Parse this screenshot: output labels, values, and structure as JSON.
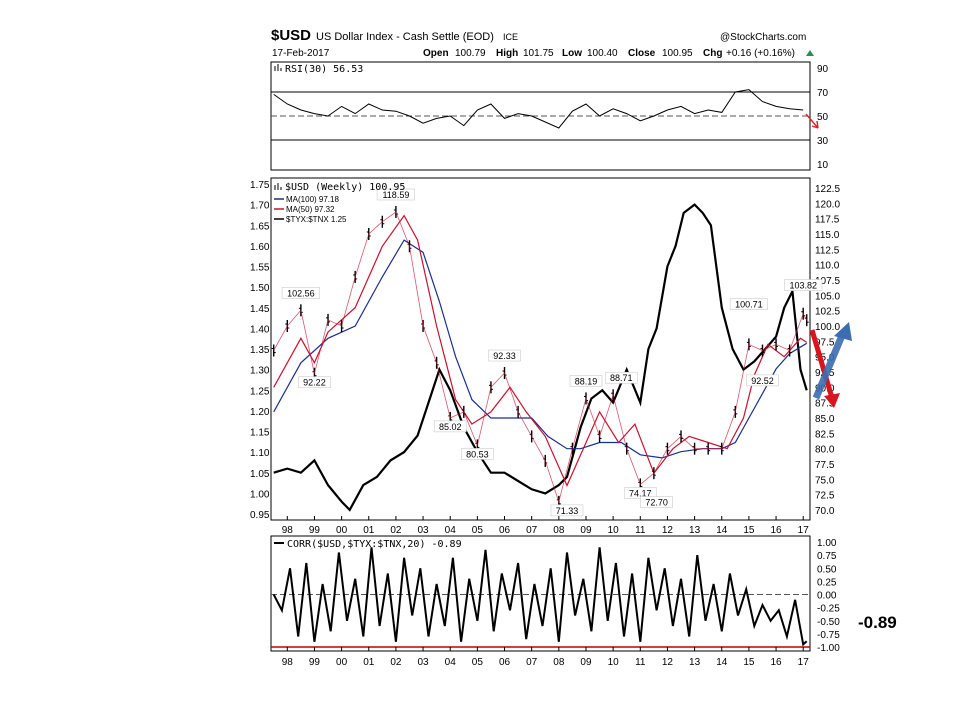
{
  "header": {
    "symbol": "$USD",
    "name": "US Dollar Index - Cash Settle (EOD)",
    "exchange": "ICE",
    "date": "17-Feb-2017",
    "watermark": "@StockCharts.com",
    "open_label": "Open",
    "open": "100.79",
    "high_label": "High",
    "high": "101.75",
    "low_label": "Low",
    "low": "100.40",
    "close_label": "Close",
    "close": "100.95",
    "chg_label": "Chg",
    "chg": "+0.16 (+0.16%)"
  },
  "corr_callout": "-0.89",
  "colors": {
    "price": "#000000",
    "ma100": "#1a2e8f",
    "ma50": "#c8102e",
    "ratio": "#000000",
    "callout": "#ee1111",
    "arrow_red": "#d9141e",
    "arrow_blue": "#3b6db0",
    "corr_floor": "#c00000"
  },
  "icons": [
    "bar-chart-icon",
    "arrow-up-icon",
    "arrow-down-icon"
  ],
  "chart_data": [
    {
      "type": "line",
      "title": "RSI(30) 56.53",
      "y_ticks": [
        90,
        70,
        50,
        30,
        10
      ],
      "ylim": [
        5,
        95
      ],
      "reference_lines": [
        70,
        50,
        30
      ],
      "series": [
        {
          "name": "RSI(30)",
          "last": 56.53,
          "x": [
            1997.5,
            1998,
            1998.5,
            1999,
            1999.5,
            2000,
            2000.5,
            2001,
            2001.5,
            2002,
            2002.5,
            2003,
            2003.5,
            2004,
            2004.5,
            2005,
            2005.5,
            2006,
            2006.5,
            2007,
            2007.5,
            2008,
            2008.5,
            2009,
            2009.5,
            2010,
            2010.5,
            2011,
            2011.5,
            2012,
            2012.5,
            2013,
            2013.5,
            2014,
            2014.5,
            2015,
            2015.5,
            2016,
            2016.5,
            2017
          ],
          "y": [
            68,
            60,
            55,
            52,
            50,
            58,
            52,
            60,
            55,
            54,
            50,
            44,
            48,
            50,
            42,
            55,
            60,
            48,
            52,
            50,
            45,
            40,
            54,
            60,
            50,
            56,
            52,
            46,
            50,
            55,
            58,
            52,
            55,
            53,
            70,
            72,
            62,
            58,
            56,
            55
          ]
        }
      ],
      "arrow": "down"
    },
    {
      "type": "line",
      "title": "$USD (Weekly) 100.95",
      "x_ticks": [
        "98",
        "99",
        "00",
        "01",
        "02",
        "03",
        "04",
        "05",
        "06",
        "07",
        "08",
        "09",
        "10",
        "11",
        "12",
        "13",
        "14",
        "15",
        "16",
        "17"
      ],
      "xlim": [
        1997.4,
        2017.25
      ],
      "left_axis": {
        "ticks": [
          1.75,
          1.7,
          1.65,
          1.6,
          1.55,
          1.5,
          1.45,
          1.4,
          1.35,
          1.3,
          1.25,
          1.2,
          1.15,
          1.1,
          1.05,
          1.0,
          0.95
        ],
        "lim": [
          0.95,
          1.75
        ]
      },
      "right_axis": {
        "ticks": [
          122.5,
          120.0,
          117.5,
          115.0,
          112.5,
          110.0,
          107.5,
          105.0,
          102.5,
          100.0,
          97.5,
          95.0,
          92.5,
          90.0,
          87.5,
          85.0,
          82.5,
          80.0,
          77.5,
          75.0,
          72.5,
          70.0
        ],
        "lim": [
          70.0,
          122.5
        ]
      },
      "series": [
        {
          "name": "$USD (Weekly) 100.95",
          "axis": "right",
          "style": "ohlc",
          "x": [
            1997.5,
            1998,
            1998.5,
            1999,
            1999.5,
            2000,
            2000.5,
            2001,
            2001.5,
            2002,
            2002.5,
            2003,
            2003.5,
            2004,
            2004.5,
            2005,
            2005.5,
            2006,
            2006.5,
            2007,
            2007.5,
            2008,
            2008.5,
            2009,
            2009.5,
            2010,
            2010.5,
            2011,
            2011.5,
            2012,
            2012.5,
            2013,
            2013.5,
            2014,
            2014.5,
            2015,
            2015.5,
            2016,
            2016.5,
            2017,
            2017.13
          ],
          "y": [
            96,
            100,
            102.56,
            92.22,
            101,
            100,
            108,
            115,
            117,
            118.59,
            113,
            100,
            94,
            85.02,
            86,
            80.53,
            90,
            92.33,
            86,
            82,
            78,
            71.33,
            80,
            88.19,
            82,
            88.71,
            80,
            74.17,
            76,
            80,
            82,
            80,
            80,
            80,
            86,
            97,
            96,
            97,
            96,
            102,
            100.95
          ]
        },
        {
          "name": "MA(100) 97.18",
          "axis": "right",
          "last": 97.18,
          "x": [
            1997.5,
            1998.5,
            1999.5,
            2000.5,
            2001.5,
            2002.3,
            2003,
            2003.6,
            2004.2,
            2004.8,
            2005.5,
            2006.2,
            2007,
            2007.6,
            2008.3,
            2008.8,
            2009.5,
            2010.3,
            2011,
            2011.8,
            2012.5,
            2013.3,
            2014,
            2014.5,
            2015,
            2015.5,
            2016,
            2016.5,
            2017.13
          ],
          "y": [
            86,
            94,
            98,
            100,
            108,
            114,
            112,
            104,
            95,
            88,
            85,
            85,
            85,
            82,
            80,
            80,
            81,
            81,
            79,
            78.5,
            79.5,
            80,
            80,
            81,
            85,
            89,
            93,
            95.5,
            97.18
          ]
        },
        {
          "name": "MA(50) 97.32",
          "axis": "right",
          "last": 97.32,
          "x": [
            1997.5,
            1998.5,
            1999,
            1999.5,
            2000.5,
            2001.5,
            2002.3,
            2002.8,
            2003.5,
            2004.2,
            2004.8,
            2005.5,
            2006.2,
            2006.8,
            2007.5,
            2008.3,
            2008.9,
            2009.5,
            2010.2,
            2010.8,
            2011.5,
            2012.2,
            2012.8,
            2013.5,
            2014.2,
            2014.8,
            2015.2,
            2015.7,
            2016.3,
            2016.9,
            2017.13
          ],
          "y": [
            90,
            98,
            94,
            99,
            103,
            113,
            118,
            114,
            100,
            88,
            84,
            86,
            90,
            86,
            82,
            74,
            80,
            86,
            81,
            84,
            76,
            80,
            82,
            81,
            80,
            85,
            92,
            97,
            95,
            98,
            97.32
          ]
        },
        {
          "name": "$TYX:$TNX 1.25",
          "axis": "left",
          "last": 1.25,
          "x": [
            1997.5,
            1998,
            1998.5,
            1999,
            1999.5,
            2000,
            2000.3,
            2000.8,
            2001.3,
            2001.8,
            2002.3,
            2002.8,
            2003.2,
            2003.6,
            2004,
            2004.5,
            2005,
            2005.5,
            2006,
            2006.5,
            2007,
            2007.5,
            2008,
            2008.3,
            2008.8,
            2009.2,
            2009.6,
            2010,
            2010.5,
            2011,
            2011.3,
            2011.6,
            2012,
            2012.3,
            2012.6,
            2013,
            2013.3,
            2013.6,
            2014,
            2014.4,
            2014.8,
            2015.2,
            2015.6,
            2016,
            2016.3,
            2016.6,
            2016.9,
            2017.13
          ],
          "y": [
            1.05,
            1.06,
            1.05,
            1.08,
            1.02,
            0.98,
            0.96,
            1.02,
            1.04,
            1.08,
            1.1,
            1.14,
            1.22,
            1.3,
            1.25,
            1.16,
            1.1,
            1.05,
            1.05,
            1.03,
            1.01,
            1.0,
            1.02,
            1.04,
            1.16,
            1.23,
            1.25,
            1.22,
            1.3,
            1.22,
            1.35,
            1.4,
            1.55,
            1.6,
            1.68,
            1.7,
            1.68,
            1.65,
            1.45,
            1.35,
            1.3,
            1.32,
            1.35,
            1.38,
            1.45,
            1.49,
            1.3,
            1.25
          ]
        }
      ],
      "annotations": [
        {
          "label": "118.59",
          "x": 2002.0,
          "y": 118.59
        },
        {
          "label": "102.56",
          "x": 1998.5,
          "y": 102.56
        },
        {
          "label": "92.22",
          "x": 1999.0,
          "y": 92.22
        },
        {
          "label": "92.33",
          "x": 2006.0,
          "y": 92.33
        },
        {
          "label": "85.02",
          "x": 2004.0,
          "y": 85.02
        },
        {
          "label": "80.53",
          "x": 2005.0,
          "y": 80.53
        },
        {
          "label": "88.19",
          "x": 2009.0,
          "y": 88.19
        },
        {
          "label": "88.71",
          "x": 2010.3,
          "y": 88.71
        },
        {
          "label": "71.33",
          "x": 2008.3,
          "y": 71.33
        },
        {
          "label": "74.17",
          "x": 2011.0,
          "y": 74.17
        },
        {
          "label": "72.70",
          "x": 2011.6,
          "y": 72.7
        },
        {
          "label": "100.71",
          "x": 2015.0,
          "y": 100.71
        },
        {
          "label": "92.52",
          "x": 2015.5,
          "y": 92.52
        },
        {
          "label": "103.82",
          "x": 2017.0,
          "y": 103.82
        }
      ]
    },
    {
      "type": "line",
      "title": "CORR($USD,$TYX:$TNX,20) -0.89",
      "x_ticks": [
        "98",
        "99",
        "00",
        "01",
        "02",
        "03",
        "04",
        "05",
        "06",
        "07",
        "08",
        "09",
        "10",
        "11",
        "12",
        "13",
        "14",
        "15",
        "16",
        "17"
      ],
      "y_ticks": [
        1.0,
        0.75,
        0.5,
        0.25,
        0.0,
        -0.25,
        -0.5,
        -0.75,
        -1.0
      ],
      "ylim": [
        -1.0,
        1.0
      ],
      "reference_lines": [
        0.0,
        -1.0
      ],
      "series": [
        {
          "name": "CORR($USD,$TYX:$TNX,20)",
          "last": -0.89,
          "x": [
            1997.5,
            1997.8,
            1998.1,
            1998.4,
            1998.7,
            1999,
            1999.3,
            1999.6,
            1999.9,
            2000.2,
            2000.5,
            2000.8,
            2001.1,
            2001.4,
            2001.7,
            2002,
            2002.3,
            2002.6,
            2002.9,
            2003.2,
            2003.5,
            2003.8,
            2004.1,
            2004.4,
            2004.7,
            2005,
            2005.3,
            2005.6,
            2005.9,
            2006.2,
            2006.5,
            2006.8,
            2007.1,
            2007.4,
            2007.7,
            2008,
            2008.3,
            2008.6,
            2008.9,
            2009.2,
            2009.5,
            2009.8,
            2010.1,
            2010.4,
            2010.7,
            2011,
            2011.3,
            2011.6,
            2011.9,
            2012.2,
            2012.5,
            2012.8,
            2013.1,
            2013.4,
            2013.7,
            2014,
            2014.3,
            2014.6,
            2014.9,
            2015.2,
            2015.5,
            2015.8,
            2016.1,
            2016.4,
            2016.7,
            2017,
            2017.13
          ],
          "y": [
            0.0,
            -0.3,
            0.5,
            -0.8,
            0.6,
            -0.9,
            0.2,
            -0.7,
            0.8,
            -0.5,
            0.3,
            -0.8,
            0.9,
            -0.6,
            0.4,
            -0.9,
            0.7,
            -0.4,
            0.5,
            -0.8,
            0.2,
            -0.6,
            0.7,
            -0.9,
            0.3,
            -0.5,
            0.85,
            -0.7,
            0.4,
            -0.3,
            0.6,
            -0.85,
            0.2,
            -0.6,
            0.5,
            -0.9,
            0.8,
            -0.4,
            0.3,
            -0.7,
            0.9,
            -0.5,
            0.6,
            -0.8,
            0.4,
            -0.9,
            0.7,
            -0.3,
            0.5,
            -0.6,
            0.3,
            -0.8,
            0.75,
            -0.5,
            0.2,
            -0.7,
            0.4,
            -0.4,
            0.1,
            -0.6,
            -0.2,
            -0.5,
            -0.3,
            -0.8,
            -0.1,
            -0.95,
            -0.89
          ]
        }
      ]
    }
  ]
}
